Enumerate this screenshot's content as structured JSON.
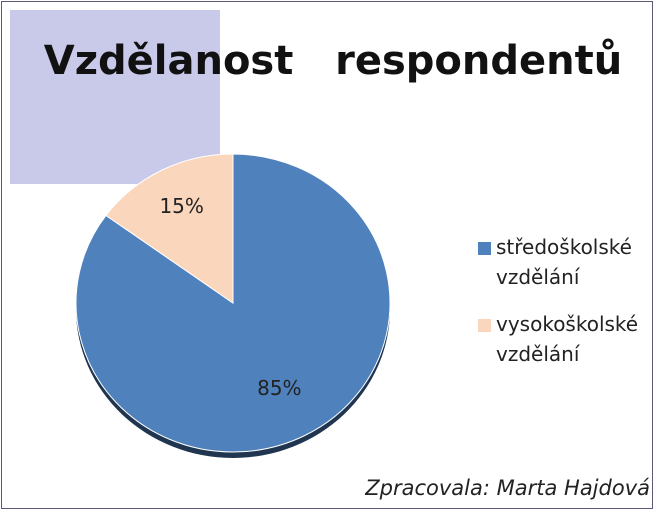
{
  "chart_data": {
    "type": "pie",
    "title": "Vzdělanost   respondentů",
    "categories": [
      "středoškolské vzdělání",
      "vysokoškolské vzdělání"
    ],
    "values": [
      85,
      15
    ],
    "value_labels": [
      "85%",
      "15%"
    ],
    "colors": [
      "#4f81bd",
      "#fad6bc"
    ],
    "legend": "right",
    "annotation": "Zpracovala: Marta Hajdová"
  }
}
